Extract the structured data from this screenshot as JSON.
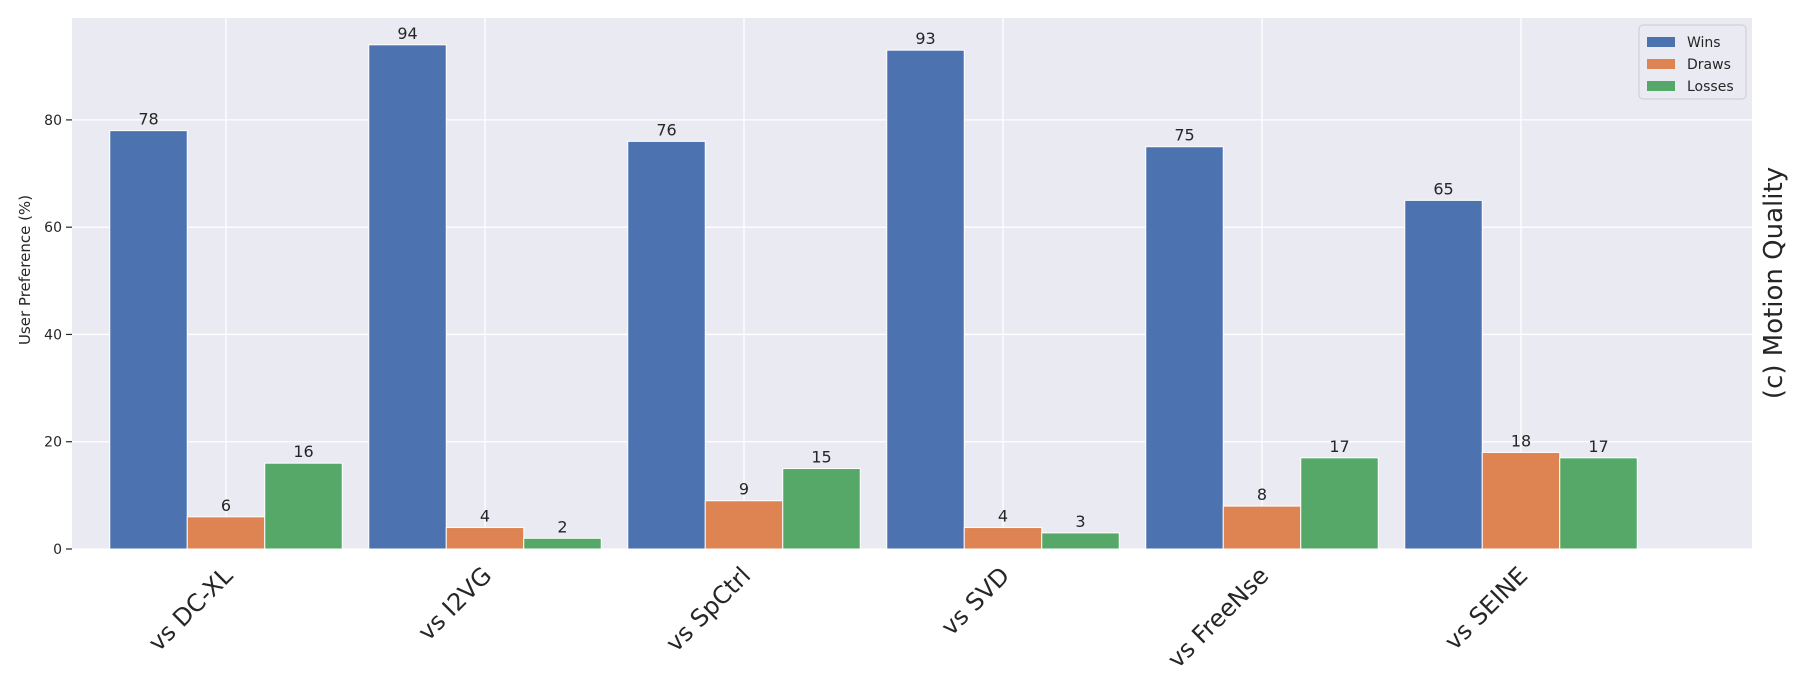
{
  "chart_data": {
    "type": "bar",
    "categories": [
      "vs  DC-XL",
      "vs  I2VG",
      "vs  SpCtrl",
      "vs  SVD",
      "vs  FreeNse",
      "vs  SEINE"
    ],
    "series": [
      {
        "name": "Wins",
        "values": [
          78,
          94,
          76,
          93,
          75,
          65
        ],
        "color": "#4c72b0"
      },
      {
        "name": "Draws",
        "values": [
          6,
          4,
          9,
          4,
          8,
          18
        ],
        "color": "#dd8452"
      },
      {
        "name": "Losses",
        "values": [
          16,
          2,
          15,
          3,
          17,
          17
        ],
        "color": "#55a868"
      }
    ],
    "ylabel": "User Preference (%)",
    "side_title": "(c) Motion Quality",
    "yticks": [
      0,
      20,
      40,
      60,
      80
    ],
    "ylim": [
      0,
      99
    ],
    "grid": true,
    "legend_position": "top-right",
    "colors": {
      "background": "#eaeaf2",
      "grid": "#ffffff"
    }
  }
}
